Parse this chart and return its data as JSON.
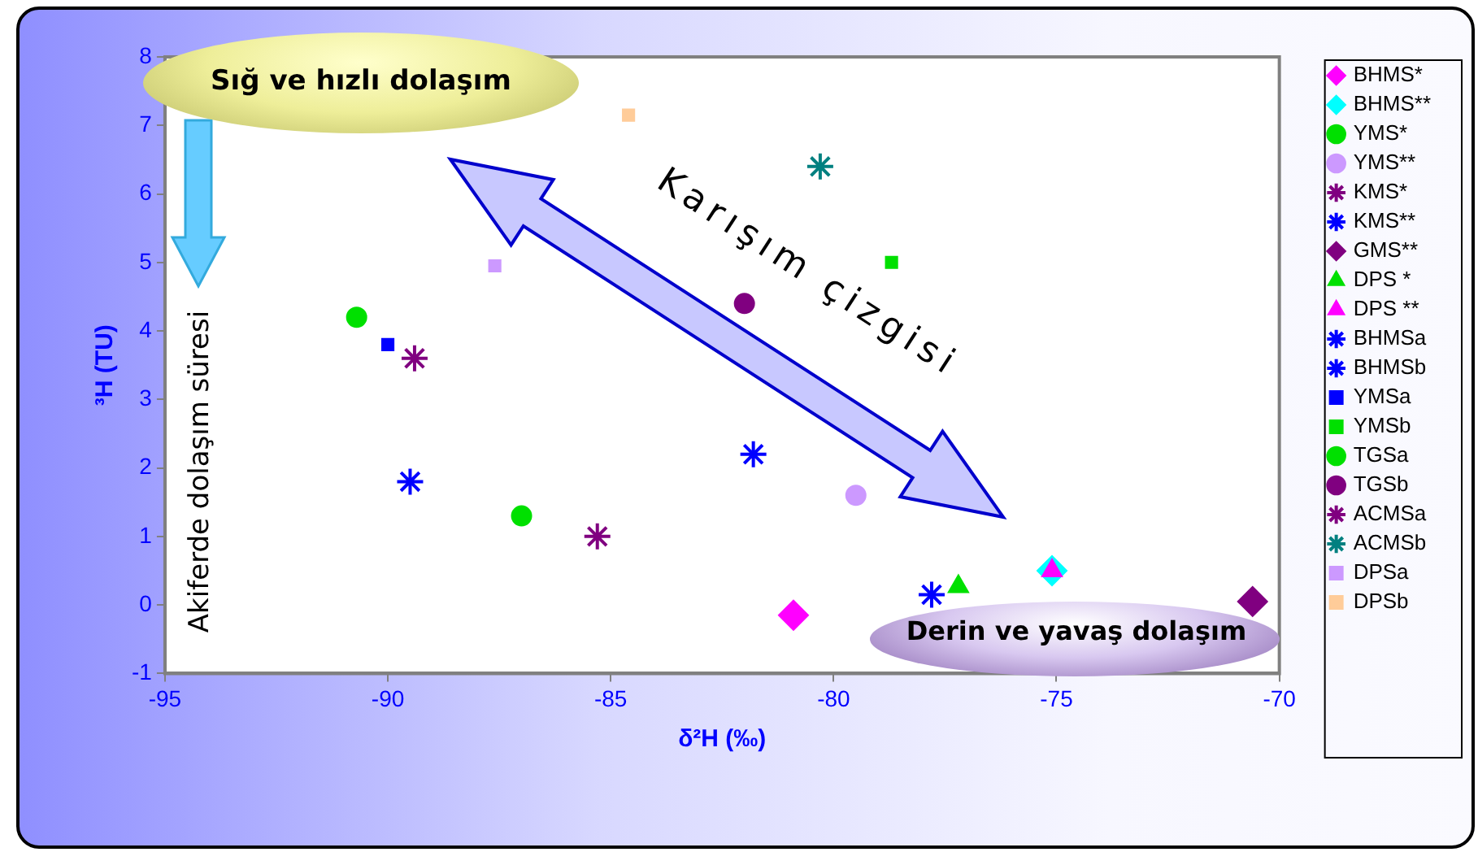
{
  "chart_data": {
    "type": "scatter",
    "xlabel": "δ²H (‰)",
    "ylabel": "³H (TU)",
    "xlim": [
      -95,
      -70
    ],
    "xticks": [
      -95,
      -90,
      -85,
      -80,
      -75,
      -70
    ],
    "ylim": [
      -1,
      8
    ],
    "yticks": [
      -1,
      0,
      1,
      2,
      3,
      4,
      5,
      6,
      7,
      8
    ],
    "grid": false,
    "legend": "right",
    "annotations": [
      "Sığ ve hızlı dolaşım",
      "Karışım çizgisi",
      "Akiferde dolaşım süresi",
      "Derin ve yavaş dolaşım"
    ],
    "series": [
      {
        "name": "BHMS*",
        "color": "#ff00ff",
        "marker": "diamond",
        "x": [
          -80.9
        ],
        "values": [
          -0.15
        ]
      },
      {
        "name": "BHMS**",
        "color": "#00ffff",
        "marker": "diamond",
        "x": [
          -75.1
        ],
        "values": [
          0.5
        ]
      },
      {
        "name": "YMS*",
        "color": "#00e000",
        "marker": "circle",
        "x": [
          -87
        ],
        "values": [
          1.3
        ]
      },
      {
        "name": "YMS**",
        "color": "#cc99ff",
        "marker": "circle",
        "x": [
          -79.5
        ],
        "values": [
          1.6
        ]
      },
      {
        "name": "KMS*",
        "color": "#800080",
        "marker": "cross",
        "x": [
          -85.3
        ],
        "values": [
          1
        ]
      },
      {
        "name": "KMS**",
        "color": "#0000ff",
        "marker": "cross",
        "x": [
          -77.8
        ],
        "values": [
          0.15
        ]
      },
      {
        "name": "GMS**",
        "color": "#800080",
        "marker": "diamond",
        "x": [
          -70.6
        ],
        "values": [
          0.05
        ]
      },
      {
        "name": "DPS *",
        "color": "#00e000",
        "marker": "triangle",
        "x": [
          -77.2
        ],
        "values": [
          0.27
        ]
      },
      {
        "name": "DPS **",
        "color": "#ff00ff",
        "marker": "triangle",
        "x": [
          -75.1
        ],
        "values": [
          0.5
        ]
      },
      {
        "name": "BHMSa",
        "color": "#0000ff",
        "marker": "cross",
        "x": [
          -89.5
        ],
        "values": [
          1.8
        ]
      },
      {
        "name": "BHMSb",
        "color": "#0000ff",
        "marker": "cross",
        "x": [
          -81.8
        ],
        "values": [
          2.2
        ]
      },
      {
        "name": "YMSa",
        "color": "#0000ff",
        "marker": "square",
        "x": [
          -90
        ],
        "values": [
          3.8
        ]
      },
      {
        "name": "YMSb",
        "color": "#00e000",
        "marker": "square",
        "x": [
          -78.7
        ],
        "values": [
          5
        ]
      },
      {
        "name": "TGSa",
        "color": "#00e000",
        "marker": "circle",
        "x": [
          -90.7
        ],
        "values": [
          4.2
        ]
      },
      {
        "name": "TGSb",
        "color": "#800080",
        "marker": "circle",
        "x": [
          -82
        ],
        "values": [
          4.4
        ]
      },
      {
        "name": "ACMSa",
        "color": "#800080",
        "marker": "cross",
        "x": [
          -89.4
        ],
        "values": [
          3.6
        ]
      },
      {
        "name": "ACMSb",
        "color": "#008080",
        "marker": "cross",
        "x": [
          -80.3
        ],
        "values": [
          6.4
        ]
      },
      {
        "name": "DPSa",
        "color": "#cc99ff",
        "marker": "square",
        "x": [
          -87.6
        ],
        "values": [
          4.95
        ]
      },
      {
        "name": "DPSb",
        "color": "#ffcc99",
        "marker": "square",
        "x": [
          -84.6
        ],
        "values": [
          7.15
        ]
      }
    ]
  }
}
